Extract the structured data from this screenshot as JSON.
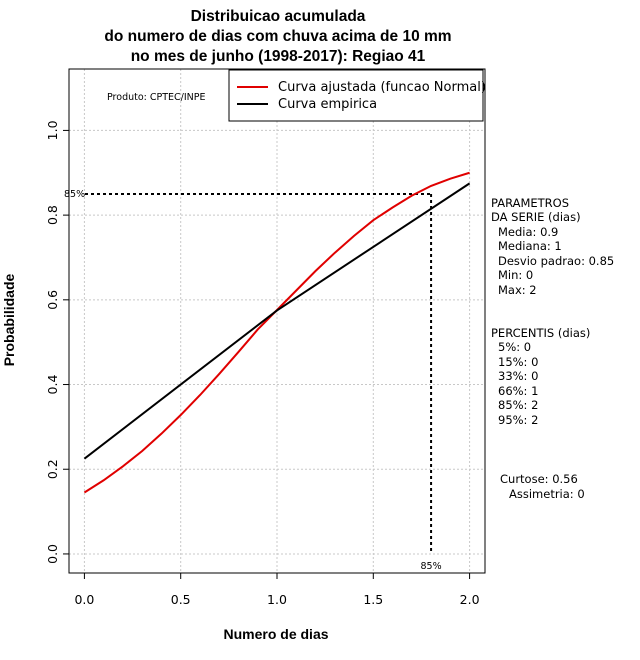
{
  "chart_data": {
    "type": "line",
    "title": [
      "Distribuicao acumulada",
      "do numero de dias com chuva acima de 10 mm",
      "no mes de junho (1998-2017): Regiao 41"
    ],
    "xlabel": "Numero de dias",
    "ylabel": "Probabilidade",
    "xlim": [
      -0.08,
      2.08
    ],
    "ylim": [
      -0.045,
      1.145
    ],
    "x_ticks": [
      0.0,
      0.5,
      1.0,
      1.5,
      2.0
    ],
    "x_tick_labels": [
      "0.0",
      "0.5",
      "1.0",
      "1.5",
      "2.0"
    ],
    "y_ticks": [
      0.0,
      0.2,
      0.4,
      0.6,
      0.8,
      1.0
    ],
    "y_tick_labels": [
      "0.0",
      "0.2",
      "0.4",
      "0.6",
      "0.8",
      "1.0"
    ],
    "grid": true,
    "legend_position": "top-right",
    "series": [
      {
        "name": "Curva ajustada (funcao Normal)",
        "color": "#e00000",
        "x": [
          0.0,
          0.1,
          0.2,
          0.3,
          0.4,
          0.5,
          0.6,
          0.7,
          0.8,
          0.9,
          1.0,
          1.1,
          1.2,
          1.3,
          1.4,
          1.5,
          1.6,
          1.7,
          1.8,
          1.9,
          2.0
        ],
        "y": [
          0.145,
          0.174,
          0.207,
          0.243,
          0.284,
          0.328,
          0.375,
          0.425,
          0.477,
          0.53,
          0.576,
          0.622,
          0.668,
          0.711,
          0.751,
          0.788,
          0.818,
          0.846,
          0.869,
          0.886,
          0.9
        ]
      },
      {
        "name": "Curva empirica",
        "color": "#000000",
        "x": [
          0.0,
          1.0,
          2.0
        ],
        "y": [
          0.225,
          0.575,
          0.875
        ]
      }
    ],
    "reference": {
      "x": 1.8,
      "y": 0.85,
      "x_label": "85%",
      "y_label": "85%"
    }
  },
  "product_label": "Produto: CPTEC/INPE",
  "parameters": {
    "heading": [
      "PARAMETROS",
      "DA SERIE (dias)"
    ],
    "lines": [
      "Media: 0.9",
      "Mediana: 1",
      "Desvio padrao: 0.85",
      "Min: 0",
      "Max: 2"
    ]
  },
  "percentiles": {
    "heading": "PERCENTIS (dias)",
    "lines": [
      "5%: 0",
      "15%: 0",
      "33%: 0",
      "66%: 1",
      "85%: 2",
      "95%: 2"
    ]
  },
  "shape": {
    "lines": [
      "Curtose: 0.56",
      "Assimetria: 0"
    ]
  }
}
